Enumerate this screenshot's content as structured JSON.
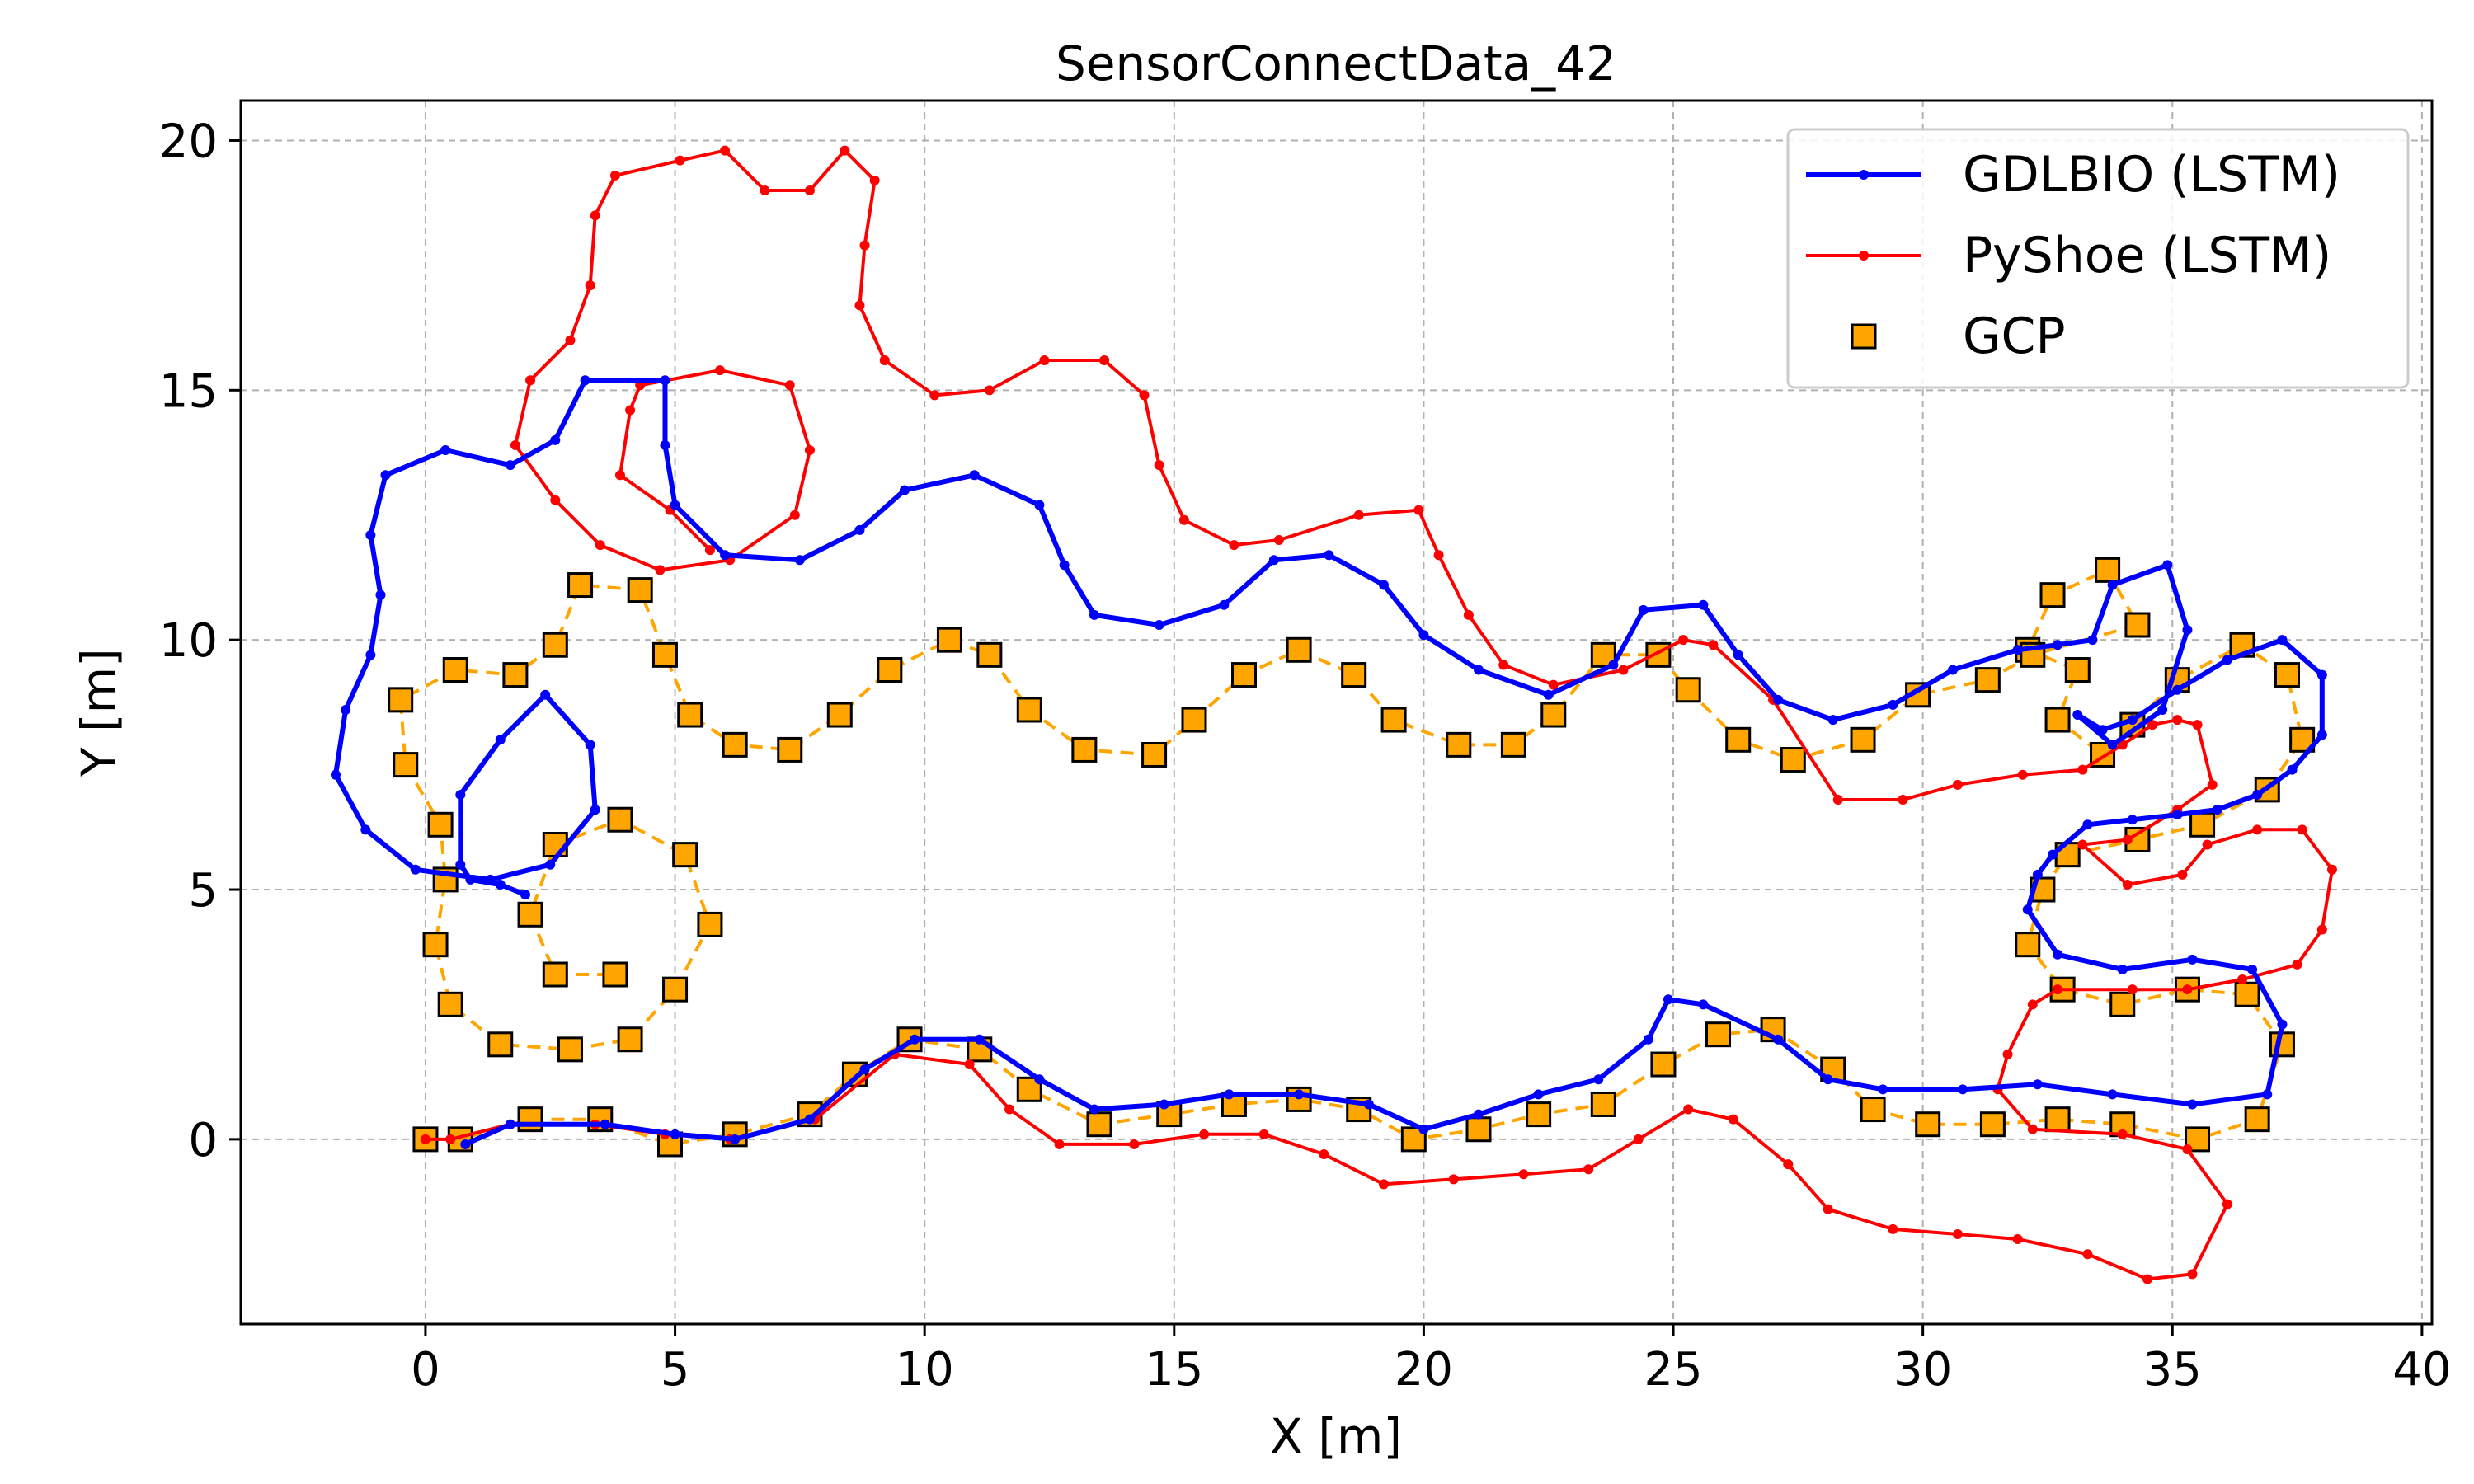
{
  "chart_data": {
    "type": "line",
    "title": "SensorConnectData_42",
    "xlabel": "X [m]",
    "ylabel": "Y [m]",
    "xlim": [
      -3.7,
      40.2
    ],
    "ylim": [
      -3.7,
      20.8
    ],
    "xticks": [
      0,
      5,
      10,
      15,
      20,
      25,
      30,
      35,
      40
    ],
    "yticks": [
      0,
      5,
      10,
      15,
      20
    ],
    "grid": true,
    "legend_position": "top-right",
    "series": [
      {
        "name": "GDLBIO (LSTM)",
        "style": "line-dot",
        "color": "#0000ff",
        "points": [
          [
            2.0,
            4.9
          ],
          [
            1.5,
            5.1
          ],
          [
            0.9,
            5.2
          ],
          [
            0.7,
            5.5
          ],
          [
            0.7,
            6.9
          ],
          [
            1.5,
            8.0
          ],
          [
            2.4,
            8.9
          ],
          [
            3.3,
            7.9
          ],
          [
            3.4,
            6.6
          ],
          [
            2.5,
            5.5
          ],
          [
            1.3,
            5.2
          ],
          [
            -0.2,
            5.4
          ],
          [
            -1.2,
            6.2
          ],
          [
            -1.8,
            7.3
          ],
          [
            -1.6,
            8.6
          ],
          [
            -1.1,
            9.7
          ],
          [
            -0.9,
            10.9
          ],
          [
            -1.1,
            12.1
          ],
          [
            -0.8,
            13.3
          ],
          [
            0.4,
            13.8
          ],
          [
            1.7,
            13.5
          ],
          [
            2.6,
            14.0
          ],
          [
            3.2,
            15.2
          ],
          [
            4.8,
            15.2
          ],
          [
            4.8,
            13.9
          ],
          [
            5.0,
            12.7
          ],
          [
            6.0,
            11.7
          ],
          [
            7.5,
            11.6
          ],
          [
            8.7,
            12.2
          ],
          [
            9.6,
            13.0
          ],
          [
            11.0,
            13.3
          ],
          [
            12.3,
            12.7
          ],
          [
            12.8,
            11.5
          ],
          [
            13.4,
            10.5
          ],
          [
            14.7,
            10.3
          ],
          [
            16.0,
            10.7
          ],
          [
            17.0,
            11.6
          ],
          [
            18.1,
            11.7
          ],
          [
            19.2,
            11.1
          ],
          [
            20.0,
            10.1
          ],
          [
            21.1,
            9.4
          ],
          [
            22.5,
            8.9
          ],
          [
            23.8,
            9.5
          ],
          [
            24.4,
            10.6
          ],
          [
            25.6,
            10.7
          ],
          [
            26.3,
            9.7
          ],
          [
            27.1,
            8.8
          ],
          [
            28.2,
            8.4
          ],
          [
            29.4,
            8.7
          ],
          [
            30.6,
            9.4
          ],
          [
            31.9,
            9.8
          ],
          [
            32.7,
            9.9
          ],
          [
            33.4,
            10.0
          ],
          [
            33.8,
            11.1
          ],
          [
            34.9,
            11.5
          ],
          [
            35.3,
            10.2
          ],
          [
            34.8,
            8.6
          ],
          [
            33.8,
            7.9
          ],
          [
            33.1,
            8.5
          ],
          [
            33.6,
            8.2
          ],
          [
            34.2,
            8.4
          ],
          [
            35.1,
            9.0
          ],
          [
            36.1,
            9.6
          ],
          [
            37.2,
            10.0
          ],
          [
            38.0,
            9.3
          ],
          [
            38.0,
            8.1
          ],
          [
            37.4,
            7.4
          ],
          [
            36.7,
            6.9
          ],
          [
            35.9,
            6.6
          ],
          [
            35.1,
            6.5
          ],
          [
            34.2,
            6.4
          ],
          [
            33.3,
            6.3
          ],
          [
            32.6,
            5.7
          ],
          [
            32.3,
            5.3
          ],
          [
            32.1,
            4.6
          ],
          [
            32.7,
            3.7
          ],
          [
            34.0,
            3.4
          ],
          [
            35.4,
            3.6
          ],
          [
            36.6,
            3.4
          ],
          [
            37.2,
            2.3
          ],
          [
            36.9,
            0.9
          ],
          [
            35.4,
            0.7
          ],
          [
            33.8,
            0.9
          ],
          [
            32.3,
            1.1
          ],
          [
            30.8,
            1.0
          ],
          [
            29.2,
            1.0
          ],
          [
            28.1,
            1.2
          ],
          [
            27.1,
            2.0
          ],
          [
            25.6,
            2.7
          ],
          [
            24.9,
            2.8
          ],
          [
            24.5,
            2.0
          ],
          [
            23.5,
            1.2
          ],
          [
            22.3,
            0.9
          ],
          [
            21.1,
            0.5
          ],
          [
            20.0,
            0.2
          ],
          [
            18.9,
            0.7
          ],
          [
            17.5,
            0.9
          ],
          [
            16.1,
            0.9
          ],
          [
            14.8,
            0.7
          ],
          [
            13.4,
            0.6
          ],
          [
            12.3,
            1.2
          ],
          [
            11.1,
            2.0
          ],
          [
            9.8,
            2.0
          ],
          [
            8.8,
            1.4
          ],
          [
            7.7,
            0.4
          ],
          [
            6.2,
            0.0
          ],
          [
            5.0,
            0.1
          ],
          [
            3.6,
            0.3
          ],
          [
            1.7,
            0.3
          ],
          [
            0.8,
            -0.1
          ]
        ]
      },
      {
        "name": "PyShoe (LSTM)",
        "style": "line-dot",
        "color": "#ff0000",
        "points": [
          [
            0.0,
            0.0
          ],
          [
            0.5,
            0.0
          ],
          [
            1.7,
            0.3
          ],
          [
            3.4,
            0.3
          ],
          [
            4.8,
            0.1
          ],
          [
            6.1,
            -0.0
          ],
          [
            7.8,
            0.4
          ],
          [
            9.4,
            1.7
          ],
          [
            10.9,
            1.5
          ],
          [
            11.7,
            0.6
          ],
          [
            12.7,
            -0.1
          ],
          [
            14.2,
            -0.1
          ],
          [
            15.6,
            0.1
          ],
          [
            16.8,
            0.1
          ],
          [
            18.0,
            -0.3
          ],
          [
            19.2,
            -0.9
          ],
          [
            20.6,
            -0.8
          ],
          [
            22.0,
            -0.7
          ],
          [
            23.3,
            -0.6
          ],
          [
            24.3,
            0.0
          ],
          [
            25.3,
            0.6
          ],
          [
            26.2,
            0.4
          ],
          [
            27.3,
            -0.5
          ],
          [
            28.1,
            -1.4
          ],
          [
            29.4,
            -1.8
          ],
          [
            30.7,
            -1.9
          ],
          [
            31.9,
            -2.0
          ],
          [
            33.3,
            -2.3
          ],
          [
            34.5,
            -2.8
          ],
          [
            35.4,
            -2.7
          ],
          [
            36.1,
            -1.3
          ],
          [
            35.3,
            -0.2
          ],
          [
            34.0,
            0.1
          ],
          [
            32.2,
            0.2
          ],
          [
            31.5,
            1.0
          ],
          [
            31.7,
            1.7
          ],
          [
            32.2,
            2.7
          ],
          [
            32.7,
            3.0
          ],
          [
            34.2,
            3.0
          ],
          [
            35.3,
            3.0
          ],
          [
            36.4,
            3.2
          ],
          [
            37.5,
            3.5
          ],
          [
            38.0,
            4.2
          ],
          [
            38.2,
            5.4
          ],
          [
            37.6,
            6.2
          ],
          [
            36.7,
            6.2
          ],
          [
            35.7,
            5.9
          ],
          [
            35.2,
            5.3
          ],
          [
            34.1,
            5.1
          ],
          [
            33.2,
            5.9
          ],
          [
            34.1,
            6.0
          ],
          [
            35.1,
            6.6
          ],
          [
            35.8,
            7.1
          ],
          [
            35.5,
            8.3
          ],
          [
            35.1,
            8.4
          ],
          [
            34.6,
            8.3
          ],
          [
            34.0,
            7.9
          ],
          [
            33.2,
            7.4
          ],
          [
            32.0,
            7.3
          ],
          [
            30.7,
            7.1
          ],
          [
            29.6,
            6.8
          ],
          [
            28.3,
            6.8
          ],
          [
            27.0,
            8.8
          ],
          [
            25.8,
            9.9
          ],
          [
            25.2,
            10.0
          ],
          [
            24.0,
            9.4
          ],
          [
            22.6,
            9.1
          ],
          [
            21.6,
            9.5
          ],
          [
            20.9,
            10.5
          ],
          [
            20.3,
            11.7
          ],
          [
            19.9,
            12.6
          ],
          [
            18.7,
            12.5
          ],
          [
            17.1,
            12.0
          ],
          [
            16.2,
            11.9
          ],
          [
            15.2,
            12.4
          ],
          [
            14.7,
            13.5
          ],
          [
            14.4,
            14.9
          ],
          [
            13.6,
            15.6
          ],
          [
            12.4,
            15.6
          ],
          [
            11.3,
            15.0
          ],
          [
            10.2,
            14.9
          ],
          [
            9.2,
            15.6
          ],
          [
            8.7,
            16.7
          ],
          [
            8.8,
            17.9
          ],
          [
            9.0,
            19.2
          ],
          [
            8.4,
            19.8
          ],
          [
            7.7,
            19.0
          ],
          [
            6.8,
            19.0
          ],
          [
            6.0,
            19.8
          ],
          [
            5.1,
            19.6
          ],
          [
            3.8,
            19.3
          ],
          [
            3.4,
            18.5
          ],
          [
            3.3,
            17.1
          ],
          [
            2.9,
            16.0
          ],
          [
            2.1,
            15.2
          ],
          [
            1.8,
            13.9
          ],
          [
            2.6,
            12.8
          ],
          [
            3.5,
            11.9
          ],
          [
            4.7,
            11.4
          ],
          [
            6.1,
            11.6
          ],
          [
            7.4,
            12.5
          ],
          [
            7.7,
            13.8
          ],
          [
            7.3,
            15.1
          ],
          [
            5.9,
            15.4
          ],
          [
            4.3,
            15.1
          ],
          [
            4.1,
            14.6
          ],
          [
            3.9,
            13.3
          ],
          [
            4.9,
            12.6
          ],
          [
            5.7,
            11.8
          ]
        ]
      },
      {
        "name": "GCP",
        "style": "square-dashed",
        "color": "#ffa500",
        "points": [
          [
            0.0,
            0.0
          ],
          [
            0.7,
            0.0
          ],
          [
            2.1,
            0.4
          ],
          [
            3.5,
            0.4
          ],
          [
            4.9,
            -0.1
          ],
          [
            6.2,
            0.1
          ],
          [
            7.7,
            0.5
          ],
          [
            8.6,
            1.3
          ],
          [
            9.7,
            2.0
          ],
          [
            11.1,
            1.8
          ],
          [
            12.1,
            1.0
          ],
          [
            13.5,
            0.3
          ],
          [
            14.9,
            0.5
          ],
          [
            16.2,
            0.7
          ],
          [
            17.5,
            0.8
          ],
          [
            18.7,
            0.6
          ],
          [
            19.8,
            0.0
          ],
          [
            21.1,
            0.2
          ],
          [
            22.3,
            0.5
          ],
          [
            23.6,
            0.7
          ],
          [
            24.8,
            1.5
          ],
          [
            25.9,
            2.1
          ],
          [
            27.0,
            2.2
          ],
          [
            28.2,
            1.4
          ],
          [
            29.0,
            0.6
          ],
          [
            30.1,
            0.3
          ],
          [
            31.4,
            0.3
          ],
          [
            32.7,
            0.4
          ],
          [
            34.0,
            0.3
          ],
          [
            35.5,
            0.0
          ],
          [
            36.7,
            0.4
          ],
          [
            37.2,
            1.9
          ],
          [
            36.5,
            2.9
          ],
          [
            35.3,
            3.0
          ],
          [
            34.0,
            2.7
          ],
          [
            32.8,
            3.0
          ],
          [
            32.1,
            3.9
          ],
          [
            32.4,
            5.0
          ],
          [
            32.9,
            5.7
          ],
          [
            34.3,
            6.0
          ],
          [
            35.6,
            6.3
          ],
          [
            36.9,
            7.0
          ],
          [
            37.6,
            8.0
          ],
          [
            37.3,
            9.3
          ],
          [
            36.4,
            9.9
          ],
          [
            35.1,
            9.2
          ],
          [
            34.2,
            8.3
          ],
          [
            33.6,
            7.7
          ],
          [
            32.7,
            8.4
          ],
          [
            33.1,
            9.4
          ],
          [
            32.1,
            9.8
          ],
          [
            32.6,
            10.9
          ],
          [
            33.7,
            11.4
          ],
          [
            34.3,
            10.3
          ],
          [
            32.2,
            9.7
          ],
          [
            31.3,
            9.2
          ],
          [
            29.9,
            8.9
          ],
          [
            28.8,
            8.0
          ],
          [
            27.4,
            7.6
          ],
          [
            26.3,
            8.0
          ],
          [
            25.3,
            9.0
          ],
          [
            24.7,
            9.7
          ],
          [
            23.6,
            9.7
          ],
          [
            22.6,
            8.5
          ],
          [
            21.8,
            7.9
          ],
          [
            20.7,
            7.9
          ],
          [
            19.4,
            8.4
          ],
          [
            18.6,
            9.3
          ],
          [
            17.5,
            9.8
          ],
          [
            16.4,
            9.3
          ],
          [
            15.4,
            8.4
          ],
          [
            14.6,
            7.7
          ],
          [
            13.2,
            7.8
          ],
          [
            12.1,
            8.6
          ],
          [
            11.3,
            9.7
          ],
          [
            10.5,
            10.0
          ],
          [
            9.3,
            9.4
          ],
          [
            8.3,
            8.5
          ],
          [
            7.3,
            7.8
          ],
          [
            6.2,
            7.9
          ],
          [
            5.3,
            8.5
          ],
          [
            4.8,
            9.7
          ],
          [
            4.3,
            11.0
          ],
          [
            3.1,
            11.1
          ],
          [
            2.6,
            9.9
          ],
          [
            1.8,
            9.3
          ],
          [
            0.6,
            9.4
          ],
          [
            -0.5,
            8.8
          ],
          [
            -0.4,
            7.5
          ],
          [
            0.3,
            6.3
          ],
          [
            0.4,
            5.2
          ],
          [
            0.2,
            3.9
          ],
          [
            0.5,
            2.7
          ],
          [
            1.5,
            1.9
          ],
          [
            2.9,
            1.8
          ],
          [
            4.1,
            2.0
          ],
          [
            5.0,
            3.0
          ],
          [
            5.7,
            4.3
          ],
          [
            5.2,
            5.7
          ],
          [
            3.9,
            6.4
          ],
          [
            2.6,
            5.9
          ],
          [
            2.1,
            4.5
          ],
          [
            2.6,
            3.3
          ],
          [
            3.8,
            3.3
          ]
        ]
      }
    ]
  }
}
